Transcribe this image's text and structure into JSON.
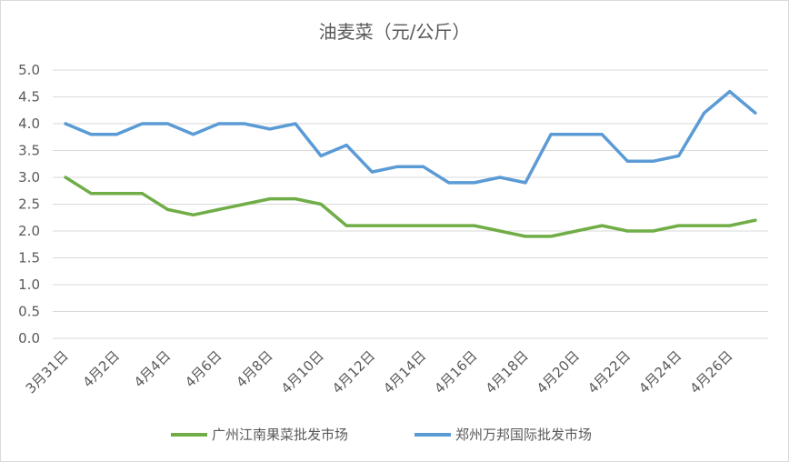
{
  "chart_data": {
    "type": "line",
    "title": "油麦菜（元/公斤）",
    "xlabel": "",
    "ylabel": "",
    "ylim": [
      0,
      5
    ],
    "yticks": [
      "0.0",
      "0.5",
      "1.0",
      "1.5",
      "2.0",
      "2.5",
      "3.0",
      "3.5",
      "4.0",
      "4.5",
      "5.0"
    ],
    "x": [
      "3月31日",
      "4月1日",
      "4月2日",
      "4月3日",
      "4月4日",
      "4月5日",
      "4月6日",
      "4月7日",
      "4月8日",
      "4月9日",
      "4月10日",
      "4月11日",
      "4月12日",
      "4月13日",
      "4月14日",
      "4月15日",
      "4月16日",
      "4月17日",
      "4月18日",
      "4月19日",
      "4月20日",
      "4月21日",
      "4月22日",
      "4月23日",
      "4月24日",
      "4月25日",
      "4月26日",
      "4月27日"
    ],
    "xtick_labels": [
      "3月31日",
      "4月2日",
      "4月4日",
      "4月6日",
      "4月8日",
      "4月10日",
      "4月12日",
      "4月14日",
      "4月16日",
      "4月18日",
      "4月20日",
      "4月22日",
      "4月24日",
      "4月26日"
    ],
    "grid": true,
    "legend_position": "bottom",
    "series": [
      {
        "name": "广州江南果菜批发市场",
        "color": "#70ad47",
        "values": [
          3.0,
          2.7,
          2.7,
          2.7,
          2.4,
          2.3,
          2.4,
          2.5,
          2.6,
          2.6,
          2.5,
          2.1,
          2.1,
          2.1,
          2.1,
          2.1,
          2.1,
          2.0,
          1.9,
          1.9,
          2.0,
          2.1,
          2.0,
          2.0,
          2.1,
          2.1,
          2.1,
          2.2
        ]
      },
      {
        "name": "郑州万邦国际批发市场",
        "color": "#5b9bd5",
        "values": [
          4.0,
          3.8,
          3.8,
          4.0,
          4.0,
          3.8,
          4.0,
          4.0,
          3.9,
          4.0,
          3.4,
          3.6,
          3.1,
          3.2,
          3.2,
          2.9,
          2.9,
          3.0,
          2.9,
          3.8,
          3.8,
          3.8,
          3.3,
          3.3,
          3.4,
          4.2,
          4.6,
          4.2
        ]
      }
    ]
  }
}
